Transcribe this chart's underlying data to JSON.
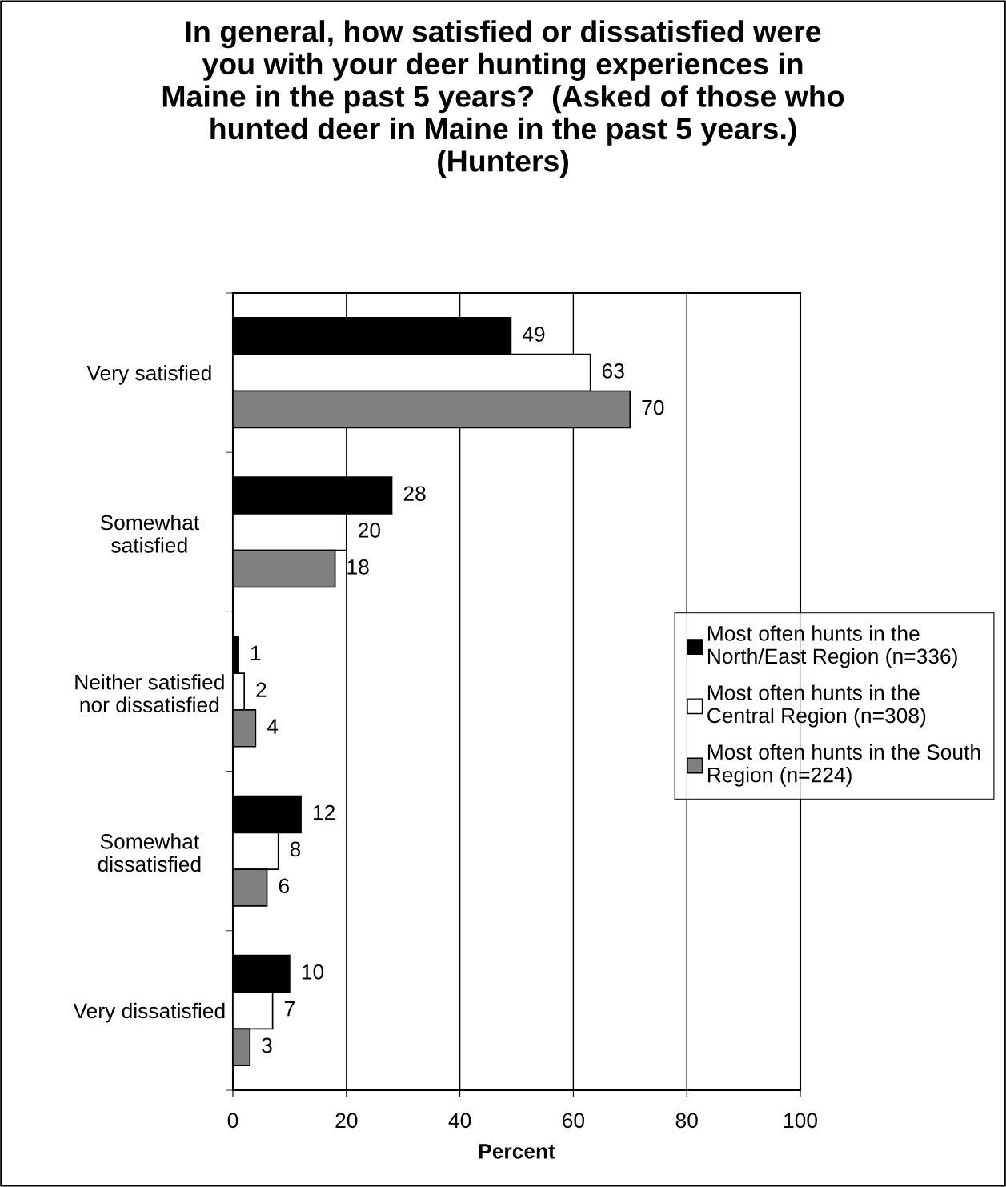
{
  "chart_data": {
    "type": "bar",
    "orientation": "horizontal",
    "title": "In general, how satisfied or dissatisfied were\nyou with your deer hunting experiences in\nMaine in the past 5 years?  (Asked of those who\nhunted deer in Maine in the past 5 years.)\n(Hunters)",
    "xlabel": "Percent",
    "categories": [
      "Very satisfied",
      "Somewhat\nsatisfied",
      "Neither satisfied\nnor dissatisfied",
      "Somewhat\ndissatisfied",
      "Very dissatisfied"
    ],
    "series": [
      {
        "name": "Most often hunts in the\nNorth/East Region (n=336)",
        "color": "#000000",
        "values": [
          49,
          28,
          1,
          12,
          10
        ]
      },
      {
        "name": "Most often hunts in the\nCentral Region (n=308)",
        "color": "#ffffff",
        "values": [
          63,
          20,
          2,
          8,
          7
        ]
      },
      {
        "name": "Most often hunts in the South\nRegion (n=224)",
        "color": "#808080",
        "values": [
          70,
          18,
          4,
          6,
          3
        ]
      }
    ],
    "xlim": [
      0,
      100
    ],
    "xticks": [
      0,
      20,
      40,
      60,
      80,
      100
    ],
    "grid": "x",
    "legend": "right",
    "data_labels": true
  }
}
